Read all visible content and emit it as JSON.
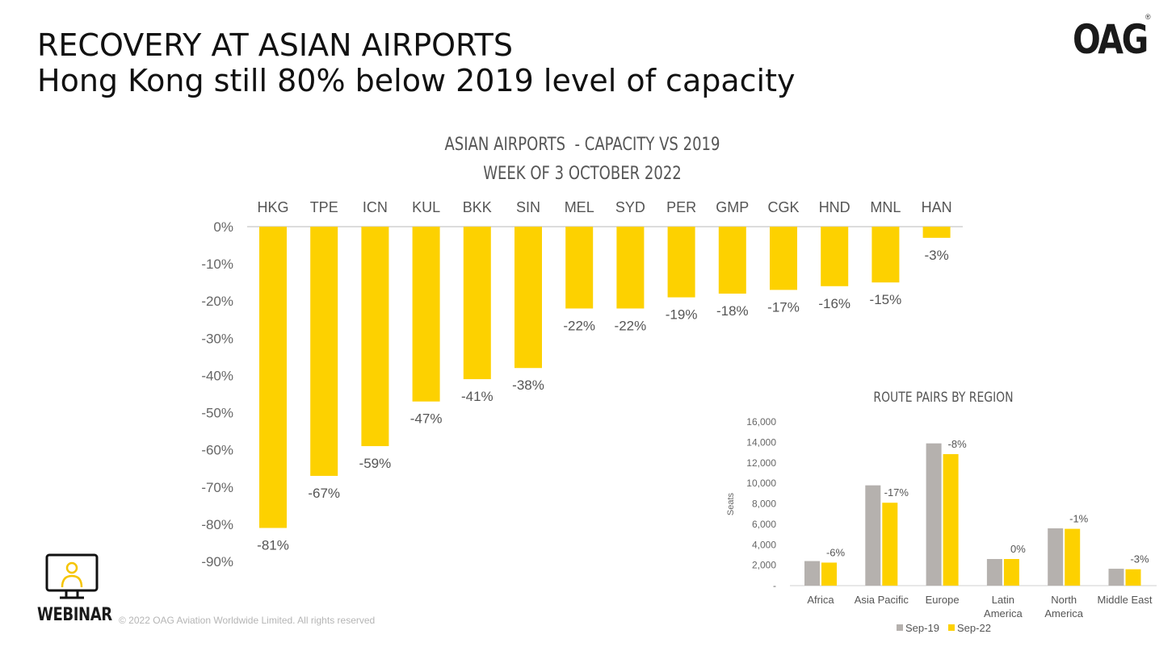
{
  "header": {
    "title_line1": "RECOVERY AT ASIAN AIRPORTS",
    "title_line2": "Hong Kong still 80% below 2019 level of capacity"
  },
  "logo_text": "OAG",
  "logo_mark": "®",
  "footer": {
    "webinar_label": "WEBINAR",
    "webinar_icon": "monitor-person-icon",
    "copyright": "© 2022 OAG Aviation Worldwide Limited. All rights reserved"
  },
  "colors": {
    "accent_yellow": "#FDD100",
    "sep19_gray": "#B5B1AE",
    "axis_gray": "#D0D0D0",
    "text_gray": "#555555"
  },
  "chart_data": [
    {
      "type": "bar",
      "title": "ASIAN AIRPORTS  - CAPACITY VS 2019",
      "subtitle": "WEEK OF 3 OCTOBER 2022",
      "categories": [
        "HKG",
        "TPE",
        "ICN",
        "KUL",
        "BKK",
        "SIN",
        "MEL",
        "SYD",
        "PER",
        "GMP",
        "CGK",
        "HND",
        "MNL",
        "HAN"
      ],
      "values": [
        -81,
        -67,
        -59,
        -47,
        -41,
        -38,
        -22,
        -22,
        -19,
        -18,
        -17,
        -16,
        -15,
        -3
      ],
      "data_labels": [
        "-81%",
        "-67%",
        "-59%",
        "-47%",
        "-41%",
        "-38%",
        "-22%",
        "-22%",
        "-19%",
        "-18%",
        "-17%",
        "-16%",
        "-15%",
        "-3%"
      ],
      "ylim": [
        -90,
        0
      ],
      "y_ticks": [
        0,
        -10,
        -20,
        -30,
        -40,
        -50,
        -60,
        -70,
        -80,
        -90
      ],
      "y_tick_labels": [
        "0%",
        "-10%",
        "-20%",
        "-30%",
        "-40%",
        "-50%",
        "-60%",
        "-70%",
        "-80%",
        "-90%"
      ],
      "category_axis_position": "top",
      "grid": false,
      "color": "#FDD100"
    },
    {
      "type": "bar",
      "title": "ROUTE PAIRS BY REGION",
      "ylabel": "Seats",
      "categories": [
        "Africa",
        "Asia Pacific",
        "Europe",
        "Latin America",
        "North America",
        "Middle East"
      ],
      "category_lines": [
        [
          "Africa"
        ],
        [
          "Asia Pacific"
        ],
        [
          "Europe"
        ],
        [
          "Latin",
          "America"
        ],
        [
          "North",
          "America"
        ],
        [
          "Middle East"
        ]
      ],
      "series": [
        {
          "name": "Sep-19",
          "color": "#B5B1AE",
          "values": [
            2400,
            9800,
            13900,
            2600,
            5600,
            1650
          ]
        },
        {
          "name": "Sep-22",
          "color": "#FDD100",
          "values": [
            2250,
            8100,
            12850,
            2600,
            5550,
            1600
          ]
        }
      ],
      "change_labels": [
        "-6%",
        "-17%",
        "-8%",
        "0%",
        "-1%",
        "-3%"
      ],
      "ylim": [
        0,
        16000
      ],
      "y_ticks": [
        0,
        2000,
        4000,
        6000,
        8000,
        10000,
        12000,
        14000,
        16000
      ],
      "y_tick_labels": [
        "-",
        "2,000",
        "4,000",
        "6,000",
        "8,000",
        "10,000",
        "12,000",
        "14,000",
        "16,000"
      ],
      "legend_position": "bottom",
      "grid": false
    }
  ]
}
